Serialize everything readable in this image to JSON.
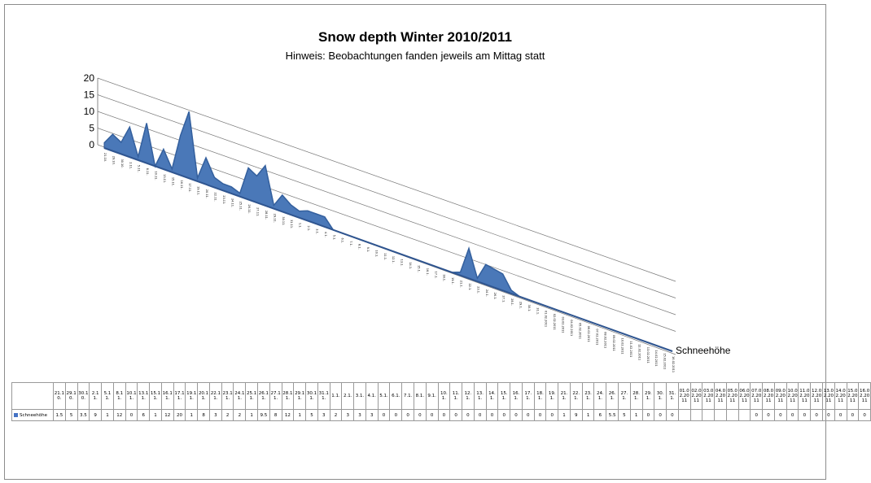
{
  "chart_data": {
    "type": "area",
    "title": "Snow depth Winter 2010/2011",
    "subtitle": "Hinweis: Beobachtungen fanden jeweils am Mittag statt",
    "ylim": [
      0,
      20
    ],
    "y_ticks": [
      "0",
      "5",
      "10",
      "15",
      "20"
    ],
    "grid": true,
    "legend": "right",
    "series": [
      {
        "name": "Schneehöhe",
        "color": "#4a78b8",
        "values": [
          1.5,
          5,
          3.5,
          9,
          1,
          12,
          0,
          6,
          1,
          12,
          20,
          1,
          8,
          3,
          2,
          2,
          1,
          9.5,
          8,
          12,
          1,
          5,
          3,
          2,
          3,
          3,
          3,
          0,
          0,
          0,
          0,
          0,
          0,
          0,
          0,
          0,
          0,
          0,
          0,
          0,
          0,
          0,
          1,
          9,
          1,
          6,
          5.5,
          5,
          1,
          0,
          0,
          0,
          null,
          null,
          null,
          null,
          null,
          null,
          0,
          0,
          0,
          0,
          0,
          0,
          0,
          0,
          0,
          0
        ]
      }
    ],
    "table_headers": [
      "21.10.",
      "29.10.",
      "30.10.",
      "2.11.",
      "5.11.",
      "8.11.",
      "10.11.",
      "13.11.",
      "15.11.",
      "16.11.",
      "17.11.",
      "19.11.",
      "20.11.",
      "22.11.",
      "23.11.",
      "24.11.",
      "25.11.",
      "26.11.",
      "27.11.",
      "28.11.",
      "29.11.",
      "30.11.",
      "31.11.",
      "1.1.",
      "2.1.",
      "3.1.",
      "4.1.",
      "5.1.",
      "6.1.",
      "7.1.",
      "8.1.",
      "9.1.",
      "10.1.",
      "11.1.",
      "12.1.",
      "13.1.",
      "14.1.",
      "15.1.",
      "16.1.",
      "17.1.",
      "18.1.",
      "19.1.",
      "21.1.",
      "22.1.",
      "23.1.",
      "24.1.",
      "26.1.",
      "27.1.",
      "28.1.",
      "29.1.",
      "30.1.",
      "31.1.",
      "01.02.2011",
      "02.02.2011",
      "03.02.2011",
      "04.02.2011",
      "05.02.2011",
      "06.02.2011",
      "07.02.2011",
      "08.02.2011",
      "09.02.2011",
      "10.02.2011",
      "11.02.2011",
      "12.02.2011",
      "13.02.2011",
      "14.02.2011",
      "15.02.2011",
      "16.02.2011"
    ],
    "table_values": [
      "1.5",
      "5",
      "3.5",
      "9",
      "1",
      "12",
      "0",
      "6",
      "1",
      "12",
      "20",
      "1",
      "8",
      "3",
      "2",
      "2",
      "1",
      "9.5",
      "8",
      "12",
      "1",
      "5",
      "3",
      "2",
      "3",
      "3",
      "3",
      "0",
      "0",
      "0",
      "0",
      "0",
      "0",
      "0",
      "0",
      "0",
      "0",
      "0",
      "0",
      "0",
      "0",
      "0",
      "1",
      "9",
      "1",
      "6",
      "5.5",
      "5",
      "1",
      "0",
      "0",
      "0",
      "",
      "",
      "",
      "",
      "",
      "",
      "0",
      "0",
      "0",
      "0",
      "0",
      "0",
      "0",
      "0",
      "0",
      "0"
    ]
  }
}
